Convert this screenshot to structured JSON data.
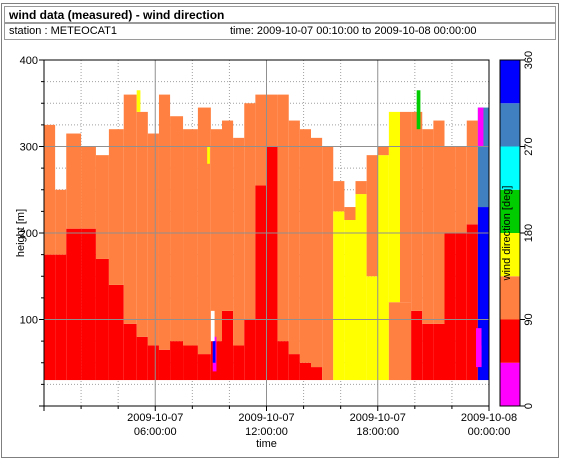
{
  "header": {
    "title": "wind data (measured) - wind direction",
    "station": "station : METEOCAT1",
    "time_range": "time: 2009-10-07 00:10:00 to 2009-10-08 00:00:00"
  },
  "chart_data": {
    "type": "heatmap",
    "title": "wind data (measured) - wind direction",
    "xlabel": "time",
    "ylabel": "height [m]",
    "colorbar_label": "wind direction [deg]",
    "x_range": [
      "2009-10-07 00:00:00",
      "2009-10-08 00:00:00"
    ],
    "x_ticks": [
      {
        "hours": 6,
        "line1": "2009-10-07",
        "line2": "06:00:00"
      },
      {
        "hours": 12,
        "line1": "2009-10-07",
        "line2": "12:00:00"
      },
      {
        "hours": 18,
        "line1": "2009-10-07",
        "line2": "18:00:00"
      },
      {
        "hours": 24,
        "line1": "2009-10-08",
        "line2": "00:00:00"
      }
    ],
    "ylim": [
      0,
      400
    ],
    "y_ticks": [
      100,
      200,
      300,
      400
    ],
    "colorbar_ticks": [
      0,
      90,
      180,
      270,
      360
    ],
    "colorbar": [
      {
        "from": 0,
        "to": 45,
        "color": "#ff00ff"
      },
      {
        "from": 45,
        "to": 90,
        "color": "#ff0000"
      },
      {
        "from": 90,
        "to": 135,
        "color": "#ff8040"
      },
      {
        "from": 135,
        "to": 180,
        "color": "#ffff00"
      },
      {
        "from": 180,
        "to": 225,
        "color": "#00cc00"
      },
      {
        "from": 225,
        "to": 270,
        "color": "#00ffff"
      },
      {
        "from": 270,
        "to": 315,
        "color": "#4080c0"
      },
      {
        "from": 315,
        "to": 360,
        "color": "#0000ff"
      }
    ],
    "lowest_height_m": 30,
    "grid": true,
    "segments": [
      {
        "start": 0.0,
        "end": 0.6,
        "top": 325,
        "low": "#ff0000",
        "low_top": 175,
        "mid": "#ff8040"
      },
      {
        "start": 0.6,
        "end": 1.2,
        "top": 250,
        "low": "#ff0000",
        "low_top": 175,
        "mid": "#ff8040"
      },
      {
        "start": 1.2,
        "end": 2.0,
        "top": 315,
        "low": "#ff0000",
        "low_top": 205,
        "mid": "#ff8040"
      },
      {
        "start": 2.0,
        "end": 2.8,
        "top": 300,
        "low": "#ff0000",
        "low_top": 205,
        "mid": "#ff8040"
      },
      {
        "start": 2.8,
        "end": 3.5,
        "top": 290,
        "low": "#ff0000",
        "low_top": 170,
        "mid": "#ff8040"
      },
      {
        "start": 3.5,
        "end": 4.3,
        "top": 320,
        "low": "#ff0000",
        "low_top": 140,
        "mid": "#ff8040"
      },
      {
        "start": 4.3,
        "end": 5.0,
        "top": 360,
        "low": "#ff0000",
        "low_top": 95,
        "mid": "#ff8040"
      },
      {
        "start": 5.0,
        "end": 5.6,
        "top": 340,
        "low": "#ff0000",
        "low_top": 80,
        "mid": "#ff8040"
      },
      {
        "start": 5.6,
        "end": 6.2,
        "top": 315,
        "low": "#ff0000",
        "low_top": 70,
        "mid": "#ff8040"
      },
      {
        "start": 6.2,
        "end": 6.8,
        "top": 360,
        "low": "#ff0000",
        "low_top": 65,
        "mid": "#ff8040"
      },
      {
        "start": 6.8,
        "end": 7.5,
        "top": 335,
        "low": "#ff0000",
        "low_top": 75,
        "mid": "#ff8040"
      },
      {
        "start": 7.5,
        "end": 8.3,
        "top": 320,
        "low": "#ff0000",
        "low_top": 70,
        "mid": "#ff8040"
      },
      {
        "start": 8.3,
        "end": 9.0,
        "top": 345,
        "low": "#ff0000",
        "low_top": 60,
        "mid": "#ff8040"
      },
      {
        "start": 9.0,
        "end": 9.6,
        "top": 320,
        "low": "#ff0000",
        "low_top": 75,
        "mid": "#ff8040"
      },
      {
        "start": 9.6,
        "end": 10.2,
        "top": 330,
        "low": "#ff0000",
        "low_top": 110,
        "mid": "#ff8040"
      },
      {
        "start": 10.2,
        "end": 10.8,
        "top": 310,
        "low": "#ff0000",
        "low_top": 70,
        "mid": "#ff8040"
      },
      {
        "start": 10.8,
        "end": 11.4,
        "top": 350,
        "low": "#ff0000",
        "low_top": 100,
        "mid": "#ff8040"
      },
      {
        "start": 11.4,
        "end": 12.0,
        "top": 360,
        "low": "#ff0000",
        "low_top": 255,
        "mid": "#ff8040"
      },
      {
        "start": 12.0,
        "end": 12.6,
        "top": 360,
        "low": "#ff0000",
        "low_top": 300,
        "mid": "#ff8040"
      },
      {
        "start": 12.6,
        "end": 13.2,
        "top": 360,
        "low": "#ff0000",
        "low_top": 75,
        "mid": "#ff8040"
      },
      {
        "start": 13.2,
        "end": 13.8,
        "top": 330,
        "low": "#ff0000",
        "low_top": 60,
        "mid": "#ff8040"
      },
      {
        "start": 13.8,
        "end": 14.4,
        "top": 320,
        "low": "#ff0000",
        "low_top": 50,
        "mid": "#ff8040"
      },
      {
        "start": 14.4,
        "end": 15.0,
        "top": 310,
        "low": "#ff0000",
        "low_top": 45,
        "mid": "#ff8040"
      },
      {
        "start": 15.0,
        "end": 15.6,
        "top": 300,
        "low": "#ff8040",
        "low_top": 30,
        "mid": "#ff8040"
      },
      {
        "start": 15.6,
        "end": 16.2,
        "top": 260,
        "low": "#ffff00",
        "low_top": 225,
        "mid": "#ff8040"
      },
      {
        "start": 16.2,
        "end": 16.8,
        "top": 230,
        "low": "#ffff00",
        "low_top": 215,
        "mid": "#ff8040"
      },
      {
        "start": 16.8,
        "end": 17.4,
        "top": 260,
        "low": "#ffff00",
        "low_top": 245,
        "mid": "#ff8040"
      },
      {
        "start": 17.4,
        "end": 18.0,
        "top": 290,
        "low": "#ffff00",
        "low_top": 150,
        "mid": "#ff8040"
      },
      {
        "start": 18.0,
        "end": 18.6,
        "top": 300,
        "low": "#ffff00",
        "low_top": 290,
        "mid": "#ff8040"
      },
      {
        "start": 18.6,
        "end": 19.2,
        "top": 340,
        "low": "#ff8040",
        "low_top": 120,
        "mid": "#ffff00"
      },
      {
        "start": 19.2,
        "end": 19.8,
        "top": 340,
        "low": "#ff8040",
        "low_top": 120,
        "mid": "#ff8040"
      },
      {
        "start": 19.8,
        "end": 20.4,
        "top": 340,
        "low": "#ff0000",
        "low_top": 110,
        "mid": "#ff8040"
      },
      {
        "start": 20.4,
        "end": 21.0,
        "top": 320,
        "low": "#ff0000",
        "low_top": 95,
        "mid": "#ff8040"
      },
      {
        "start": 21.0,
        "end": 21.6,
        "top": 330,
        "low": "#ff0000",
        "low_top": 95,
        "mid": "#ff8040"
      },
      {
        "start": 21.6,
        "end": 22.2,
        "top": 300,
        "low": "#ff0000",
        "low_top": 200,
        "mid": "#ff8040"
      },
      {
        "start": 22.2,
        "end": 22.8,
        "top": 300,
        "low": "#ff0000",
        "low_top": 200,
        "mid": "#ff8040"
      },
      {
        "start": 22.8,
        "end": 23.4,
        "top": 330,
        "low": "#ff0000",
        "low_top": 210,
        "mid": "#ff8040"
      },
      {
        "start": 23.4,
        "end": 24.0,
        "top": 345,
        "low": "#0000ff",
        "low_top": 230,
        "mid": "#4080c0"
      }
    ],
    "patches": [
      {
        "start": 9.1,
        "end": 9.3,
        "low": 40,
        "high": 80,
        "color": "#ff00ff"
      },
      {
        "start": 9.1,
        "end": 9.25,
        "low": 50,
        "high": 75,
        "color": "#0000ff"
      },
      {
        "start": 9.0,
        "end": 9.2,
        "low": 75,
        "high": 110,
        "color": "#ffffff"
      },
      {
        "start": 20.1,
        "end": 20.3,
        "low": 320,
        "high": 365,
        "color": "#00cc00"
      },
      {
        "start": 23.3,
        "end": 23.6,
        "low": 45,
        "high": 90,
        "color": "#ff00ff"
      },
      {
        "start": 23.4,
        "end": 23.7,
        "low": 300,
        "high": 345,
        "color": "#ff00ff"
      },
      {
        "start": 23.6,
        "end": 23.9,
        "low": 70,
        "high": 110,
        "color": "#0000ff"
      },
      {
        "start": 5.0,
        "end": 5.2,
        "low": 340,
        "high": 365,
        "color": "#ffff00"
      },
      {
        "start": 8.8,
        "end": 8.95,
        "low": 280,
        "high": 300,
        "color": "#ffff00"
      }
    ]
  }
}
